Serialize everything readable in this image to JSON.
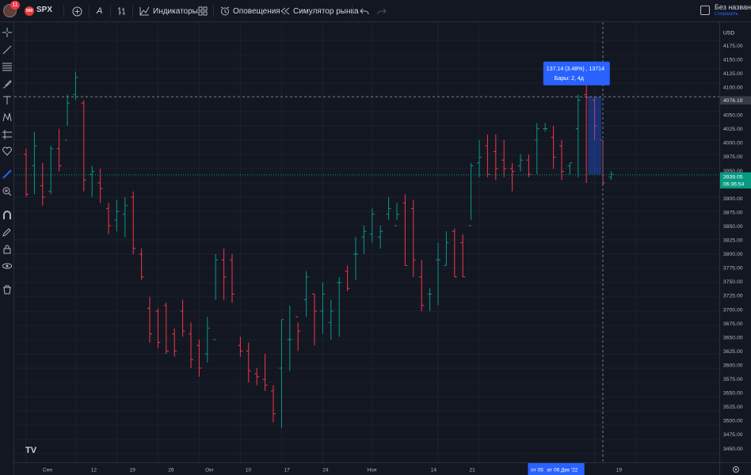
{
  "header": {
    "avatar_badge": "11",
    "symbol": "SPX",
    "symbol_logo": "500",
    "timeframe_label": "А",
    "indicators_label": "Индикаторы",
    "alerts_label": "Оповещения",
    "replay_label": "Симулятор рынка",
    "doc_title": "Без названия",
    "doc_subtitle": "Сохранить"
  },
  "price_axis": {
    "currency": "USD",
    "last_price": "3939.05",
    "countdown": "06:36:54",
    "crosshair_price": "4076.19"
  },
  "tooltip": {
    "line1": "137.14 (3.48%) , 13714",
    "line2": "Бары: 2, 4д"
  },
  "time_axis": {
    "range_start": "пт 05",
    "range_end": "вт 06 Дек '22"
  },
  "chart_data": {
    "type": "ohlc",
    "ylim": [
      3450,
      4200
    ],
    "y_ticks": [
      4175,
      4150,
      4125,
      4100,
      4075,
      4050,
      4025,
      4000,
      3975,
      3950,
      3925,
      3900,
      3875,
      3850,
      3825,
      3800,
      3775,
      3750,
      3725,
      3700,
      3675,
      3650,
      3625,
      3600,
      3575,
      3550,
      3525,
      3500,
      3475,
      3450
    ],
    "x_ticks": [
      {
        "label": "Сен",
        "bar": 0
      },
      {
        "label": "12",
        "bar": 6
      },
      {
        "label": "19",
        "bar": 11
      },
      {
        "label": "26",
        "bar": 16
      },
      {
        "label": "Окт",
        "bar": 21
      },
      {
        "label": "10",
        "bar": 26
      },
      {
        "label": "17",
        "bar": 31
      },
      {
        "label": "24",
        "bar": 36
      },
      {
        "label": "Ноя",
        "bar": 42
      },
      {
        "label": "14",
        "bar": 50
      },
      {
        "label": "21",
        "bar": 55
      },
      {
        "label": "12",
        "bar": 69
      },
      {
        "label": "19",
        "bar": 74
      }
    ],
    "bars": [
      [
        3975,
        3985,
        3900,
        3905
      ],
      [
        3955,
        4015,
        3905,
        3990
      ],
      [
        3920,
        3960,
        3885,
        3900
      ],
      [
        3910,
        3990,
        3905,
        3985
      ],
      [
        3985,
        4020,
        3945,
        3955
      ],
      [
        4000,
        4080,
        4025,
        4065
      ],
      [
        4080,
        4120,
        4070,
        4110
      ],
      [
        4065,
        4070,
        3910,
        3930
      ],
      [
        3940,
        3955,
        3900,
        3945
      ],
      [
        3925,
        3950,
        3890,
        3915
      ],
      [
        3880,
        3890,
        3835,
        3850
      ],
      [
        3860,
        3895,
        3840,
        3875
      ],
      [
        3870,
        3900,
        3830,
        3885
      ],
      [
        3900,
        3910,
        3800,
        3810
      ],
      [
        3800,
        3810,
        3755,
        3760
      ],
      [
        3705,
        3725,
        3645,
        3660
      ],
      [
        3700,
        3705,
        3635,
        3645
      ],
      [
        3710,
        3715,
        3625,
        3630
      ],
      [
        3660,
        3670,
        3620,
        3630
      ],
      [
        3700,
        3720,
        3655,
        3665
      ],
      [
        3660,
        3680,
        3600,
        3615
      ],
      [
        3640,
        3650,
        3585,
        3600
      ],
      [
        3625,
        3690,
        3610,
        3670
      ],
      [
        3650,
        3800,
        3720,
        3790
      ],
      [
        3790,
        3810,
        3720,
        3760
      ],
      [
        3790,
        3800,
        3715,
        3730
      ],
      [
        3640,
        3655,
        3620,
        3630
      ],
      [
        3630,
        3645,
        3575,
        3595
      ],
      [
        3590,
        3600,
        3570,
        3585
      ],
      [
        3580,
        3625,
        3560,
        3570
      ],
      [
        3560,
        3570,
        3505,
        3520
      ],
      [
        3600,
        3685,
        3495,
        3685
      ],
      [
        3650,
        3710,
        3595,
        3650
      ],
      [
        3690,
        3680,
        3630,
        3665
      ],
      [
        3720,
        3770,
        3690,
        3760
      ],
      [
        3730,
        3730,
        3640,
        3700
      ],
      [
        3700,
        3750,
        3660,
        3730
      ],
      [
        3680,
        3720,
        3650,
        3700
      ],
      [
        3750,
        3760,
        3655,
        3750
      ],
      [
        3770,
        3780,
        3735,
        3740
      ],
      [
        3800,
        3830,
        3755,
        3800
      ],
      [
        3830,
        3850,
        3800,
        3840
      ],
      [
        3835,
        3880,
        3820,
        3870
      ],
      [
        3830,
        3850,
        3810,
        3840
      ],
      [
        3870,
        3900,
        3860,
        3880
      ],
      [
        3850,
        3890,
        3860,
        3870
      ],
      [
        3890,
        3905,
        3780,
        3780
      ],
      [
        3880,
        3895,
        3760,
        3790
      ],
      [
        3760,
        3790,
        3700,
        3710
      ],
      [
        3730,
        3740,
        3700,
        3730
      ],
      [
        3790,
        3820,
        3710,
        3790
      ],
      [
        3780,
        3840,
        3780,
        3820
      ],
      [
        3840,
        3845,
        3760,
        3760
      ],
      [
        3820,
        3835,
        3760,
        3760
      ],
      [
        3850,
        3960,
        3860,
        3955
      ],
      [
        3960,
        4000,
        3935,
        3970
      ],
      [
        3990,
        4010,
        3935,
        3940
      ],
      [
        3980,
        4010,
        3930,
        3950
      ],
      [
        3965,
        4000,
        3935,
        3950
      ],
      [
        3950,
        3960,
        3910,
        3945
      ],
      [
        3955,
        3975,
        3945,
        3965
      ],
      [
        3965,
        3975,
        3935,
        3940
      ],
      [
        4000,
        4030,
        3940,
        4020
      ],
      [
        4020,
        4030,
        4015,
        4020
      ],
      [
        4005,
        4025,
        3950,
        3970
      ],
      [
        3990,
        4000,
        3930,
        3945
      ],
      [
        3955,
        3960,
        3940,
        3960
      ],
      [
        4020,
        4080,
        3935,
        4070
      ],
      [
        4080,
        4100,
        3925,
        4075
      ],
      [
        4070,
        4075,
        4000,
        4025
      ],
      [
        4000,
        4000,
        3920,
        3925
      ],
      [
        3935,
        3945,
        3930,
        3940
      ]
    ]
  }
}
